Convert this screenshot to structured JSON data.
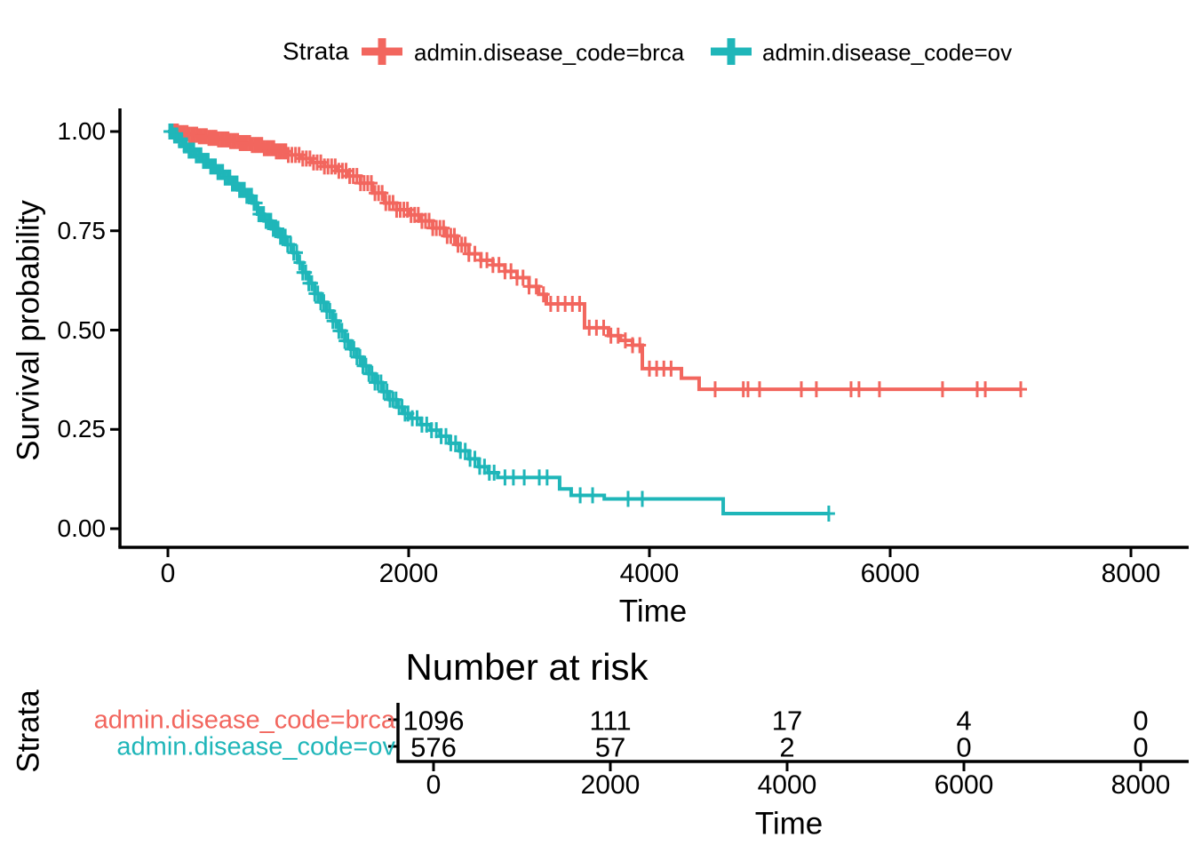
{
  "colors": {
    "brca": "#F2665E",
    "ov": "#1FB6B9",
    "axis": "#000000",
    "background": "#FFFFFF"
  },
  "legend": {
    "title": "Strata",
    "items": [
      {
        "label": "admin.disease_code=brca",
        "color": "#F2665E"
      },
      {
        "label": "admin.disease_code=ov",
        "color": "#1FB6B9"
      }
    ]
  },
  "main_plot": {
    "xlabel": "Time",
    "ylabel": "Survival probability",
    "x_tick_labels": [
      "0",
      "2000",
      "4000",
      "6000",
      "8000"
    ],
    "y_tick_labels": [
      "0.00",
      "0.25",
      "0.50",
      "0.75",
      "1.00"
    ]
  },
  "risk_table": {
    "title": "Number at risk",
    "axis_label": "Strata",
    "xlabel": "Time",
    "x_tick_labels": [
      "0",
      "2000",
      "4000",
      "6000",
      "8000"
    ],
    "rows": [
      {
        "label": "admin.disease_code=brca",
        "color": "#F2665E",
        "values": [
          "1096",
          "111",
          "17",
          "4",
          "0"
        ]
      },
      {
        "label": "admin.disease_code=ov",
        "color": "#1FB6B9",
        "values": [
          "576",
          "57",
          "2",
          "0",
          "0"
        ]
      }
    ]
  },
  "chart_data": {
    "type": "line",
    "subtype": "kaplan-meier-step-curves",
    "title": "",
    "xlabel": "Time",
    "ylabel": "Survival probability",
    "xlim": [
      0,
      8400
    ],
    "ylim": [
      0,
      1.0
    ],
    "x_ticks": [
      0,
      2000,
      4000,
      6000,
      8000
    ],
    "y_ticks": [
      0,
      0.25,
      0.5,
      0.75,
      1.0
    ],
    "grid": false,
    "legend_position": "top",
    "series": [
      {
        "name": "admin.disease_code=brca",
        "color": "#F2665E",
        "steps": [
          [
            0,
            1.0
          ],
          [
            90,
            0.996
          ],
          [
            170,
            0.992
          ],
          [
            250,
            0.988
          ],
          [
            330,
            0.984
          ],
          [
            420,
            0.98
          ],
          [
            510,
            0.976
          ],
          [
            600,
            0.971
          ],
          [
            700,
            0.966
          ],
          [
            800,
            0.958
          ],
          [
            900,
            0.95
          ],
          [
            1000,
            0.941
          ],
          [
            1100,
            0.932
          ],
          [
            1200,
            0.922
          ],
          [
            1300,
            0.912
          ],
          [
            1400,
            0.901
          ],
          [
            1500,
            0.888
          ],
          [
            1600,
            0.87
          ],
          [
            1700,
            0.845
          ],
          [
            1800,
            0.82
          ],
          [
            1900,
            0.803
          ],
          [
            2000,
            0.79
          ],
          [
            2100,
            0.775
          ],
          [
            2200,
            0.757
          ],
          [
            2300,
            0.737
          ],
          [
            2400,
            0.715
          ],
          [
            2500,
            0.692
          ],
          [
            2600,
            0.676
          ],
          [
            2700,
            0.664
          ],
          [
            2800,
            0.648
          ],
          [
            2900,
            0.632
          ],
          [
            3000,
            0.61
          ],
          [
            3080,
            0.59
          ],
          [
            3144,
            0.566
          ],
          [
            3461,
            0.506
          ],
          [
            3660,
            0.486
          ],
          [
            3760,
            0.474
          ],
          [
            3860,
            0.462
          ],
          [
            3941,
            0.403
          ],
          [
            4266,
            0.379
          ],
          [
            4413,
            0.351
          ],
          [
            7085,
            0.351
          ]
        ],
        "censor_times": [
          20,
          40,
          60,
          80,
          100,
          120,
          140,
          160,
          180,
          200,
          220,
          240,
          260,
          280,
          300,
          320,
          340,
          360,
          380,
          400,
          420,
          440,
          460,
          480,
          500,
          520,
          540,
          560,
          580,
          600,
          620,
          640,
          660,
          680,
          700,
          720,
          740,
          760,
          780,
          800,
          820,
          840,
          860,
          880,
          900,
          920,
          940,
          960,
          980,
          1000,
          1030,
          1060,
          1090,
          1120,
          1150,
          1180,
          1210,
          1240,
          1270,
          1300,
          1330,
          1360,
          1390,
          1420,
          1450,
          1480,
          1510,
          1540,
          1570,
          1600,
          1630,
          1660,
          1690,
          1720,
          1750,
          1780,
          1810,
          1840,
          1870,
          1900,
          1930,
          1960,
          1990,
          2020,
          2050,
          2080,
          2110,
          2140,
          2170,
          2200,
          2230,
          2260,
          2290,
          2320,
          2350,
          2380,
          2410,
          2440,
          2470,
          2500,
          2550,
          2600,
          2650,
          2700,
          2750,
          2800,
          2850,
          2900,
          2950,
          3000,
          3060,
          3120,
          3180,
          3240,
          3300,
          3360,
          3420,
          3500,
          3560,
          3620,
          3680,
          3740,
          3800,
          3860,
          3920,
          4000,
          4060,
          4120,
          4180,
          4546,
          4780,
          4819,
          4915,
          5262,
          5387,
          5675,
          5741,
          5911,
          6435,
          6723,
          6790,
          7085
        ]
      },
      {
        "name": "admin.disease_code=ov",
        "color": "#1FB6B9",
        "steps": [
          [
            0,
            1.0
          ],
          [
            40,
            0.99
          ],
          [
            80,
            0.978
          ],
          [
            120,
            0.965
          ],
          [
            170,
            0.952
          ],
          [
            220,
            0.94
          ],
          [
            280,
            0.926
          ],
          [
            340,
            0.912
          ],
          [
            400,
            0.898
          ],
          [
            460,
            0.884
          ],
          [
            520,
            0.869
          ],
          [
            580,
            0.853
          ],
          [
            640,
            0.838
          ],
          [
            700,
            0.82
          ],
          [
            745,
            0.792
          ],
          [
            800,
            0.775
          ],
          [
            860,
            0.755
          ],
          [
            920,
            0.735
          ],
          [
            980,
            0.715
          ],
          [
            1040,
            0.695
          ],
          [
            1080,
            0.67
          ],
          [
            1120,
            0.645
          ],
          [
            1170,
            0.618
          ],
          [
            1220,
            0.592
          ],
          [
            1270,
            0.57
          ],
          [
            1320,
            0.548
          ],
          [
            1370,
            0.523
          ],
          [
            1420,
            0.498
          ],
          [
            1470,
            0.473
          ],
          [
            1520,
            0.452
          ],
          [
            1570,
            0.432
          ],
          [
            1620,
            0.41
          ],
          [
            1670,
            0.39
          ],
          [
            1720,
            0.368
          ],
          [
            1780,
            0.345
          ],
          [
            1840,
            0.325
          ],
          [
            1900,
            0.306
          ],
          [
            1960,
            0.29
          ],
          [
            2020,
            0.278
          ],
          [
            2100,
            0.262
          ],
          [
            2180,
            0.248
          ],
          [
            2260,
            0.233
          ],
          [
            2340,
            0.215
          ],
          [
            2420,
            0.196
          ],
          [
            2500,
            0.176
          ],
          [
            2580,
            0.156
          ],
          [
            2660,
            0.141
          ],
          [
            2740,
            0.129
          ],
          [
            3254,
            0.1
          ],
          [
            3350,
            0.084
          ],
          [
            3625,
            0.075
          ],
          [
            4613,
            0.038
          ],
          [
            5490,
            0.038
          ]
        ],
        "censor_times": [
          15,
          35,
          55,
          75,
          95,
          115,
          135,
          155,
          175,
          195,
          215,
          235,
          255,
          275,
          295,
          315,
          335,
          355,
          375,
          395,
          415,
          435,
          455,
          475,
          495,
          515,
          535,
          555,
          575,
          595,
          615,
          635,
          655,
          675,
          695,
          715,
          735,
          755,
          775,
          795,
          815,
          835,
          855,
          875,
          895,
          915,
          935,
          955,
          975,
          995,
          1020,
          1045,
          1070,
          1095,
          1120,
          1145,
          1170,
          1195,
          1220,
          1245,
          1270,
          1295,
          1320,
          1345,
          1370,
          1395,
          1420,
          1445,
          1470,
          1495,
          1520,
          1545,
          1570,
          1595,
          1620,
          1645,
          1670,
          1695,
          1720,
          1745,
          1770,
          1795,
          1820,
          1845,
          1870,
          1895,
          1920,
          1945,
          1970,
          1995,
          2030,
          2070,
          2110,
          2150,
          2190,
          2230,
          2270,
          2310,
          2350,
          2390,
          2430,
          2470,
          2510,
          2550,
          2590,
          2630,
          2670,
          2710,
          2800,
          2870,
          2960,
          3085,
          3150,
          3425,
          3528,
          3823,
          3941,
          5490
        ]
      }
    ],
    "number_at_risk": {
      "times": [
        0,
        2000,
        4000,
        6000,
        8000
      ],
      "series": [
        {
          "name": "admin.disease_code=brca",
          "values": [
            1096,
            111,
            17,
            4,
            0
          ]
        },
        {
          "name": "admin.disease_code=ov",
          "values": [
            576,
            57,
            2,
            0,
            0
          ]
        }
      ]
    }
  }
}
